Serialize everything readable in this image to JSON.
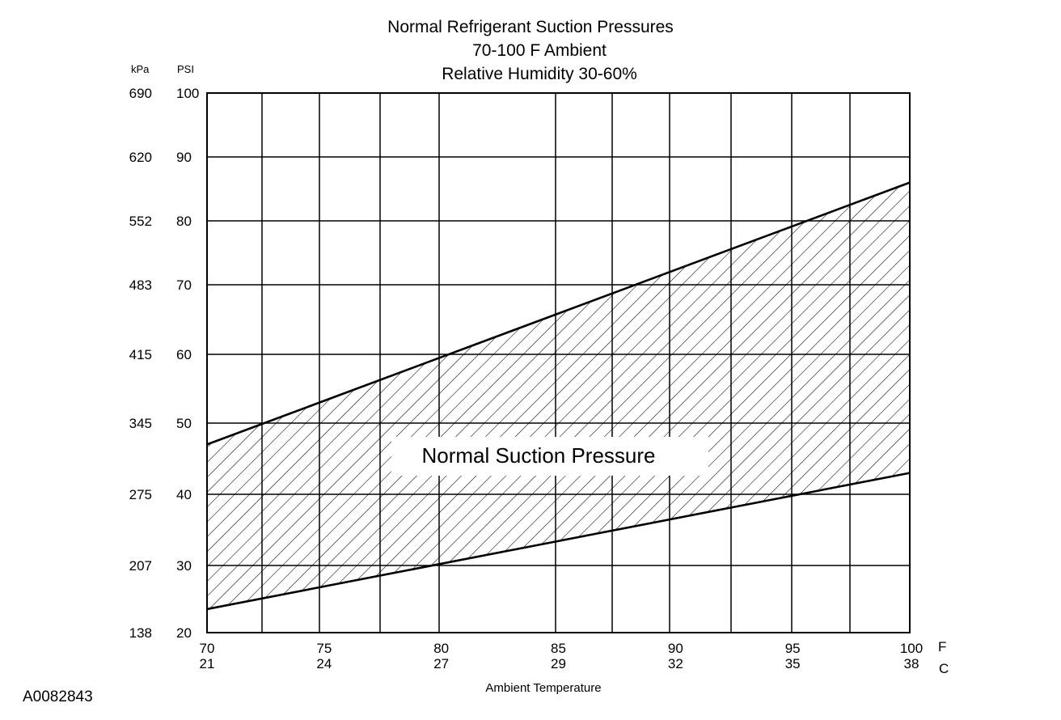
{
  "chart_data": {
    "type": "area",
    "title_lines": [
      "Normal  Refrigerant  Suction  Pressures",
      "70-100 F Ambient",
      "Relative Humidity 30-60%"
    ],
    "y_headers": {
      "kpa": "kPa",
      "psi": "PSI"
    },
    "y_ticks_psi": [
      "100",
      "90",
      "80",
      "70",
      "60",
      "50",
      "40",
      "30",
      "20"
    ],
    "y_ticks_kpa": [
      "690",
      "620",
      "552",
      "483",
      "415",
      "345",
      "275",
      "207",
      "138"
    ],
    "ylim_psi": [
      20,
      100
    ],
    "x_ticks_f": [
      "70",
      "75",
      "80",
      "85",
      "90",
      "95",
      "100"
    ],
    "x_ticks_c": [
      "21",
      "24",
      "27",
      "29",
      "32",
      "35",
      "38"
    ],
    "x_unit_f": "F",
    "x_unit_c": "C",
    "xlim_f": [
      70,
      100
    ],
    "xlabel": "Ambient Temperature",
    "region_label": "Normal Suction Pressure",
    "upper_boundary": {
      "x_f": [
        70,
        100
      ],
      "psi": [
        47,
        86
      ]
    },
    "lower_boundary": {
      "x_f": [
        70,
        100
      ],
      "psi": [
        23.5,
        43
      ]
    }
  },
  "figure_id": "A0082843"
}
